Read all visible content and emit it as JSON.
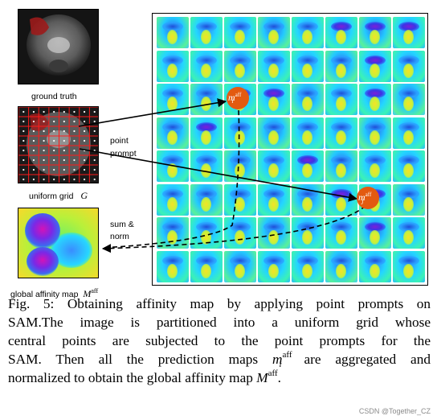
{
  "labels": {
    "ground_truth": "ground truth",
    "uniform_grid": "uniform grid",
    "uniform_grid_symbol": "G",
    "point_prompt_line1": "point",
    "point_prompt_line2": "prompt",
    "sum_norm_line1": "sum &",
    "sum_norm_line2": "norm",
    "global_affinity_map": "global affinity map",
    "global_affinity_symbol": "M",
    "global_affinity_sup": "aff",
    "marker_i_symbol": "m",
    "marker_i_sub": "i",
    "marker_j_symbol": "m",
    "marker_j_sub": "j",
    "marker_sup": "aff"
  },
  "caption": {
    "line1": "Fig. 5: Obtaining affinity map by applying point prompts on",
    "line2": "SAM.The image is partitioned into a uniform grid whose",
    "line3": "central points are subjected to the point prompts for the",
    "line4a": "SAM. Then all the prediction maps",
    "line4_symbol": "m",
    "line4_sub": "i",
    "line4_sup": "aff",
    "line4b": "are aggregated and",
    "line5a": "normalized to obtain the global affinity map",
    "line5_symbol": "M",
    "line5_sup": "aff",
    "line5b": "."
  },
  "watermark": "CSDN @Together_CZ",
  "colors": {
    "marker": "#e35a10",
    "arrow": "#000000",
    "grid_red": "#ff1a1a"
  }
}
